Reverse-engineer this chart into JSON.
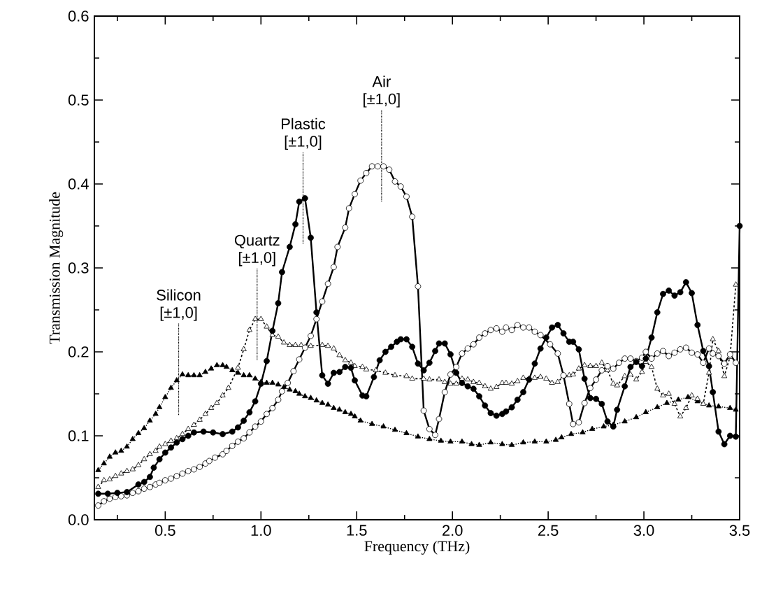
{
  "chart_data": {
    "type": "line",
    "xlabel": "Frequency (THz)",
    "ylabel": "Transmission Magnitude",
    "xlim": [
      0.13,
      3.5
    ],
    "ylim": [
      0,
      0.6
    ],
    "xticks": [
      {
        "value": 0.25,
        "label": null
      },
      0.5,
      {
        "value": 0.75,
        "label": null
      },
      {
        "value": 1,
        "label": "1.0"
      },
      {
        "value": 1.25,
        "label": null
      },
      1.5,
      {
        "value": 1.75,
        "label": null
      },
      {
        "value": 2,
        "label": "2.0"
      },
      {
        "value": 2.25,
        "label": null
      },
      2.5,
      {
        "value": 2.75,
        "label": null
      },
      {
        "value": 3,
        "label": "3.0"
      },
      {
        "value": 3.25,
        "label": null
      },
      3.5
    ],
    "yticks": [
      {
        "value": 0,
        "label": "0.0"
      },
      {
        "value": 0.05,
        "label": null
      },
      0.1,
      {
        "value": 0.15,
        "label": null
      },
      0.2,
      {
        "value": 0.25,
        "label": null
      },
      0.3,
      {
        "value": 0.35,
        "label": null
      },
      0.4,
      {
        "value": 0.45,
        "label": null
      },
      0.5,
      {
        "value": 0.55,
        "label": null
      },
      0.6
    ],
    "series": [
      {
        "color": "#000000",
        "marker": "triangle",
        "line_style": "dotted",
        "x": [
          0.15,
          0.18,
          0.21,
          0.24,
          0.27,
          0.3,
          0.33,
          0.36,
          0.39,
          0.42,
          0.45,
          0.47,
          0.5,
          0.53,
          0.56,
          0.59,
          0.62,
          0.65,
          0.68,
          0.71,
          0.74,
          0.77,
          0.8,
          0.82,
          0.85,
          0.88,
          0.91,
          0.94,
          0.97,
          1.0,
          1.03,
          1.06,
          1.09,
          1.12,
          1.15,
          1.18,
          1.2,
          1.23,
          1.26,
          1.29,
          1.32,
          1.35,
          1.38,
          1.41,
          1.44,
          1.47,
          1.49,
          1.52,
          1.58,
          1.64,
          1.7,
          1.76,
          1.82,
          1.88,
          1.94,
          1.99,
          2.05,
          2.1,
          2.14,
          2.2,
          2.26,
          2.31,
          2.37,
          2.43,
          2.49,
          2.54,
          2.57,
          2.62,
          2.68,
          2.73,
          2.79,
          2.84,
          2.9,
          2.96,
          3.01,
          3.07,
          3.12,
          3.18,
          3.23,
          3.28,
          3.34,
          3.39,
          3.45,
          3.48
        ],
        "values": [
          0.059,
          0.067,
          0.075,
          0.08,
          0.082,
          0.087,
          0.096,
          0.103,
          0.109,
          0.118,
          0.126,
          0.134,
          0.146,
          0.157,
          0.166,
          0.173,
          0.172,
          0.172,
          0.172,
          0.176,
          0.18,
          0.184,
          0.184,
          0.182,
          0.178,
          0.175,
          0.172,
          0.172,
          0.168,
          0.164,
          0.163,
          0.163,
          0.161,
          0.158,
          0.155,
          0.153,
          0.15,
          0.147,
          0.145,
          0.142,
          0.139,
          0.137,
          0.133,
          0.131,
          0.128,
          0.126,
          0.123,
          0.118,
          0.114,
          0.111,
          0.107,
          0.103,
          0.099,
          0.096,
          0.094,
          0.093,
          0.093,
          0.09,
          0.089,
          0.092,
          0.09,
          0.089,
          0.092,
          0.093,
          0.093,
          0.095,
          0.098,
          0.102,
          0.104,
          0.108,
          0.111,
          0.113,
          0.117,
          0.122,
          0.128,
          0.134,
          0.139,
          0.143,
          0.146,
          0.141,
          0.136,
          0.135,
          0.133,
          0.131
        ]
      },
      {
        "color": "#ffffff",
        "marker": "triangle",
        "line_style": "dashed",
        "x": [
          0.15,
          0.18,
          0.21,
          0.24,
          0.27,
          0.3,
          0.33,
          0.36,
          0.39,
          0.42,
          0.45,
          0.47,
          0.5,
          0.53,
          0.56,
          0.59,
          0.62,
          0.65,
          0.68,
          0.71,
          0.74,
          0.77,
          0.8,
          0.83,
          0.88,
          0.91,
          0.94,
          0.97,
          1.0,
          1.03,
          1.06,
          1.09,
          1.12,
          1.15,
          1.18,
          1.21,
          1.26,
          1.32,
          1.35,
          1.38,
          1.41,
          1.44,
          1.47,
          1.49,
          1.53,
          1.55,
          1.6,
          1.65,
          1.7,
          1.76,
          1.79,
          1.85,
          1.88,
          1.93,
          1.96,
          1.99,
          2.02,
          2.05,
          2.08,
          2.11,
          2.14,
          2.17,
          2.2,
          2.23,
          2.26,
          2.28,
          2.31,
          2.34,
          2.37,
          2.4,
          2.43,
          2.46,
          2.49,
          2.52,
          2.55,
          2.58,
          2.61,
          2.63,
          2.66,
          2.69,
          2.72,
          2.75,
          2.78,
          2.81,
          2.84,
          2.86,
          2.9,
          2.93,
          2.96,
          2.99,
          3.01,
          3.04,
          3.07,
          3.1,
          3.13,
          3.16,
          3.19,
          3.22,
          3.25,
          3.28,
          3.31,
          3.34,
          3.36,
          3.39,
          3.42,
          3.45,
          3.48
        ],
        "values": [
          0.039,
          0.047,
          0.048,
          0.052,
          0.055,
          0.058,
          0.06,
          0.065,
          0.072,
          0.078,
          0.082,
          0.087,
          0.09,
          0.094,
          0.097,
          0.102,
          0.108,
          0.113,
          0.119,
          0.126,
          0.133,
          0.139,
          0.148,
          0.157,
          0.181,
          0.203,
          0.226,
          0.239,
          0.239,
          0.23,
          0.22,
          0.218,
          0.211,
          0.208,
          0.208,
          0.208,
          0.207,
          0.208,
          0.207,
          0.204,
          0.196,
          0.19,
          0.187,
          0.183,
          0.182,
          0.179,
          0.178,
          0.175,
          0.172,
          0.171,
          0.168,
          0.168,
          0.167,
          0.167,
          0.164,
          0.162,
          0.162,
          0.168,
          0.167,
          0.164,
          0.163,
          0.159,
          0.156,
          0.158,
          0.163,
          0.163,
          0.162,
          0.165,
          0.169,
          0.168,
          0.169,
          0.17,
          0.168,
          0.163,
          0.164,
          0.171,
          0.172,
          0.173,
          0.18,
          0.184,
          0.183,
          0.183,
          0.187,
          0.178,
          0.162,
          0.16,
          0.171,
          0.173,
          0.167,
          0.176,
          0.188,
          0.182,
          0.156,
          0.148,
          0.15,
          0.138,
          0.123,
          0.133,
          0.148,
          0.144,
          0.138,
          0.175,
          0.215,
          0.201,
          0.171,
          0.194,
          0.28
        ]
      },
      {
        "color": "#ffffff",
        "marker": "circle",
        "line_style": "solid",
        "x": [
          0.15,
          0.18,
          0.21,
          0.24,
          0.27,
          0.3,
          0.33,
          0.36,
          0.39,
          0.42,
          0.45,
          0.47,
          0.5,
          0.53,
          0.56,
          0.59,
          0.62,
          0.65,
          0.68,
          0.71,
          0.73,
          0.76,
          0.8,
          0.82,
          0.85,
          0.88,
          0.91,
          0.94,
          0.97,
          1.0,
          1.03,
          1.06,
          1.09,
          1.11,
          1.14,
          1.17,
          1.2,
          1.23,
          1.26,
          1.29,
          1.32,
          1.35,
          1.38,
          1.4,
          1.44,
          1.46,
          1.49,
          1.52,
          1.55,
          1.58,
          1.61,
          1.64,
          1.67,
          1.7,
          1.73,
          1.76,
          1.79,
          1.82,
          1.85,
          1.88,
          1.91,
          1.93,
          1.96,
          1.99,
          2.02,
          2.05,
          2.08,
          2.11,
          2.14,
          2.17,
          2.2,
          2.23,
          2.26,
          2.28,
          2.31,
          2.34,
          2.37,
          2.4,
          2.43,
          2.46,
          2.51,
          2.55,
          2.58,
          2.61,
          2.63,
          2.66,
          2.69,
          2.72,
          2.75,
          2.78,
          2.81,
          2.84,
          2.87,
          2.9,
          2.93,
          2.96,
          2.99,
          3.01,
          3.04,
          3.07,
          3.1,
          3.13,
          3.16,
          3.19,
          3.22,
          3.25,
          3.28,
          3.31,
          3.34,
          3.36,
          3.39,
          3.42,
          3.45,
          3.48
        ],
        "values": [
          0.017,
          0.022,
          0.025,
          0.027,
          0.028,
          0.029,
          0.032,
          0.034,
          0.037,
          0.039,
          0.042,
          0.044,
          0.047,
          0.049,
          0.052,
          0.055,
          0.058,
          0.06,
          0.063,
          0.067,
          0.07,
          0.074,
          0.078,
          0.082,
          0.088,
          0.093,
          0.097,
          0.104,
          0.111,
          0.117,
          0.126,
          0.133,
          0.143,
          0.153,
          0.163,
          0.177,
          0.191,
          0.205,
          0.219,
          0.239,
          0.26,
          0.281,
          0.301,
          0.325,
          0.348,
          0.371,
          0.388,
          0.404,
          0.413,
          0.421,
          0.421,
          0.421,
          0.417,
          0.403,
          0.397,
          0.385,
          0.361,
          0.278,
          0.13,
          0.108,
          0.101,
          0.12,
          0.152,
          0.173,
          0.182,
          0.198,
          0.204,
          0.209,
          0.217,
          0.222,
          0.226,
          0.228,
          0.224,
          0.229,
          0.226,
          0.232,
          0.229,
          0.229,
          0.224,
          0.22,
          0.209,
          0.198,
          0.172,
          0.138,
          0.114,
          0.116,
          0.139,
          0.157,
          0.167,
          0.178,
          0.183,
          0.18,
          0.187,
          0.192,
          0.192,
          0.189,
          0.193,
          0.2,
          0.192,
          0.198,
          0.201,
          0.195,
          0.199,
          0.203,
          0.205,
          0.199,
          0.197,
          0.187,
          0.204,
          0.198,
          0.195,
          0.186,
          0.197,
          0.187
        ]
      },
      {
        "color": "#000000",
        "marker": "circle",
        "line_style": "solid",
        "x": [
          0.15,
          0.2,
          0.25,
          0.3,
          0.36,
          0.39,
          0.42,
          0.44,
          0.47,
          0.5,
          0.53,
          0.56,
          0.59,
          0.62,
          0.65,
          0.7,
          0.75,
          0.8,
          0.85,
          0.88,
          0.91,
          0.94,
          0.97,
          1.0,
          1.03,
          1.06,
          1.09,
          1.11,
          1.15,
          1.18,
          1.2,
          1.23,
          1.26,
          1.29,
          1.32,
          1.35,
          1.38,
          1.41,
          1.44,
          1.47,
          1.49,
          1.53,
          1.55,
          1.59,
          1.62,
          1.65,
          1.68,
          1.71,
          1.73,
          1.76,
          1.79,
          1.82,
          1.85,
          1.88,
          1.91,
          1.93,
          1.96,
          1.99,
          2.02,
          2.05,
          2.08,
          2.11,
          2.14,
          2.17,
          2.2,
          2.23,
          2.26,
          2.28,
          2.31,
          2.34,
          2.37,
          2.4,
          2.43,
          2.46,
          2.49,
          2.52,
          2.55,
          2.58,
          2.61,
          2.63,
          2.66,
          2.69,
          2.72,
          2.75,
          2.78,
          2.81,
          2.84,
          2.86,
          2.9,
          2.93,
          2.96,
          2.99,
          3.01,
          3.04,
          3.07,
          3.1,
          3.13,
          3.16,
          3.19,
          3.22,
          3.25,
          3.28,
          3.31,
          3.34,
          3.36,
          3.39,
          3.42,
          3.45,
          3.48,
          3.5
        ],
        "values": [
          0.031,
          0.031,
          0.032,
          0.033,
          0.042,
          0.045,
          0.051,
          0.062,
          0.072,
          0.08,
          0.086,
          0.092,
          0.096,
          0.1,
          0.104,
          0.105,
          0.104,
          0.102,
          0.105,
          0.11,
          0.118,
          0.128,
          0.141,
          0.162,
          0.189,
          0.225,
          0.258,
          0.295,
          0.325,
          0.352,
          0.379,
          0.383,
          0.336,
          0.247,
          0.172,
          0.162,
          0.175,
          0.176,
          0.182,
          0.181,
          0.166,
          0.148,
          0.147,
          0.17,
          0.19,
          0.2,
          0.206,
          0.212,
          0.215,
          0.215,
          0.206,
          0.186,
          0.178,
          0.187,
          0.201,
          0.21,
          0.21,
          0.197,
          0.175,
          0.163,
          0.159,
          0.156,
          0.147,
          0.136,
          0.127,
          0.124,
          0.126,
          0.129,
          0.134,
          0.143,
          0.152,
          0.167,
          0.186,
          0.204,
          0.217,
          0.229,
          0.232,
          0.222,
          0.212,
          0.212,
          0.203,
          0.168,
          0.145,
          0.144,
          0.138,
          0.117,
          0.111,
          0.131,
          0.159,
          0.182,
          0.188,
          0.183,
          0.192,
          0.217,
          0.247,
          0.269,
          0.273,
          0.267,
          0.271,
          0.283,
          0.27,
          0.232,
          0.201,
          0.183,
          0.152,
          0.105,
          0.09,
          0.1,
          0.099,
          0.35
        ]
      }
    ],
    "annotations": [
      "Silicon [±1,0]",
      "Quartz [±1,0]",
      "Plastic [±1,0]",
      "Air [±1,0]"
    ]
  }
}
